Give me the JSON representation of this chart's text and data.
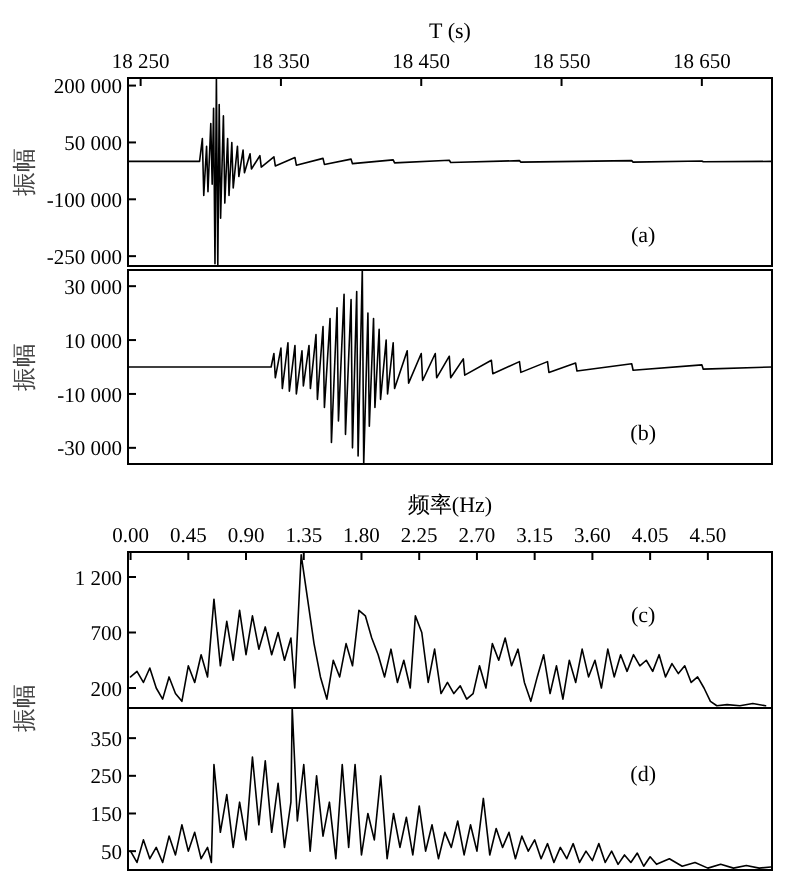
{
  "chart_data": [
    {
      "type": "line",
      "xlabel": "T (s)",
      "ylabel": "振幅",
      "annotations": [
        "(a)"
      ],
      "xlim": [
        18241,
        18700
      ],
      "ylim": [
        -276000,
        220000
      ],
      "xticks": [
        {
          "value": 18250,
          "label": "18 250"
        },
        {
          "value": 18350,
          "label": "18 350"
        },
        {
          "value": 18450,
          "label": "18 450"
        },
        {
          "value": 18550,
          "label": "18 550"
        },
        {
          "value": 18650,
          "label": "18 650"
        }
      ],
      "yticks": [
        {
          "value": 200000,
          "label": "200 000"
        },
        {
          "value": 50000,
          "label": "50 000"
        },
        {
          "value": -100000,
          "label": "-100 000"
        },
        {
          "value": -250000,
          "label": "-250 000"
        }
      ],
      "series": [
        {
          "color": "#000000",
          "x": [
            18241,
            18292,
            18294,
            18295,
            18297,
            18298,
            18300,
            18301,
            18302,
            18303,
            18304,
            18305,
            18306,
            18307,
            18309,
            18310,
            18312,
            18313,
            18315,
            18316,
            18319,
            18320,
            18323,
            18324,
            18328,
            18329,
            18335,
            18336,
            18345,
            18346,
            18360,
            18361,
            18380,
            18381,
            18400,
            18401,
            18430,
            18431,
            18470,
            18471,
            18520,
            18521,
            18600,
            18601,
            18650,
            18651,
            18700
          ],
          "values": [
            0,
            0,
            60000,
            -90000,
            40000,
            -80000,
            100000,
            -60000,
            140000,
            -270000,
            219000,
            -276000,
            150000,
            -150000,
            120000,
            -110000,
            60000,
            -90000,
            50000,
            -70000,
            40000,
            -40000,
            30000,
            -30000,
            20000,
            -20000,
            15000,
            -15000,
            12000,
            -12000,
            10000,
            -10000,
            8000,
            -8000,
            6000,
            -6000,
            4000,
            -4000,
            3000,
            -3000,
            2000,
            -2000,
            2000,
            -2000,
            1000,
            -1000,
            0
          ]
        }
      ]
    },
    {
      "type": "line",
      "ylabel": "振幅",
      "annotations": [
        "(b)"
      ],
      "xlim": [
        18241,
        18700
      ],
      "ylim": [
        -36000,
        36000
      ],
      "tick_labels": "y",
      "yticks": [
        {
          "value": 30000,
          "label": "30 000"
        },
        {
          "value": 10000,
          "label": "10 000"
        },
        {
          "value": -10000,
          "label": "-10 000"
        },
        {
          "value": -30000,
          "label": "-30 000"
        }
      ],
      "series": [
        {
          "color": "#000000",
          "x": [
            18241,
            18343,
            18345,
            18346,
            18350,
            18351,
            18355,
            18356,
            18360,
            18361,
            18365,
            18366,
            18370,
            18371,
            18375,
            18376,
            18380,
            18381,
            18385,
            18386,
            18390,
            18391,
            18395,
            18396,
            18400,
            18401,
            18404,
            18405,
            18408,
            18409,
            18412,
            18413,
            18416,
            18417,
            18420,
            18421,
            18425,
            18426,
            18430,
            18431,
            18440,
            18441,
            18450,
            18451,
            18460,
            18461,
            18470,
            18471,
            18480,
            18481,
            18500,
            18501,
            18520,
            18521,
            18540,
            18541,
            18560,
            18561,
            18600,
            18601,
            18650,
            18651,
            18700
          ],
          "values": [
            0,
            0,
            5000,
            -4000,
            7000,
            -8000,
            9000,
            -9000,
            8000,
            -10000,
            6000,
            -7000,
            8000,
            -8000,
            12000,
            -12000,
            15000,
            -15000,
            18000,
            -28000,
            22000,
            -20000,
            27000,
            -25000,
            25000,
            -30000,
            28000,
            -33000,
            36000,
            -36000,
            20000,
            -22000,
            18000,
            -15000,
            14000,
            -12000,
            10000,
            -10000,
            9000,
            -8000,
            6000,
            -6000,
            5000,
            -5000,
            5000,
            -4000,
            4000,
            -4000,
            3000,
            -3000,
            2500,
            -2500,
            2000,
            -2000,
            2000,
            -2000,
            1500,
            -1500,
            1200,
            -1200,
            800,
            -800,
            0
          ]
        }
      ]
    },
    {
      "type": "line",
      "xlabel": "频率(Hz)",
      "ylabel": "振幅",
      "annotations": [
        "(c)"
      ],
      "xlim": [
        -0.02,
        5.0
      ],
      "ylim": [
        20,
        1425
      ],
      "xticks": [
        {
          "value": 0,
          "label": "0.00"
        },
        {
          "value": 0.45,
          "label": "0.45"
        },
        {
          "value": 0.9,
          "label": "0.90"
        },
        {
          "value": 1.35,
          "label": "1.35"
        },
        {
          "value": 1.8,
          "label": "1.80"
        },
        {
          "value": 2.25,
          "label": "2.25"
        },
        {
          "value": 2.7,
          "label": "2.70"
        },
        {
          "value": 3.15,
          "label": "3.15"
        },
        {
          "value": 3.6,
          "label": "3.60"
        },
        {
          "value": 4.05,
          "label": "4.05"
        },
        {
          "value": 4.5,
          "label": "4.50"
        }
      ],
      "yticks": [
        {
          "value": 1200,
          "label": "1 200"
        },
        700,
        200
      ],
      "series": [
        {
          "color": "#000000",
          "x": [
            0.0,
            0.05,
            0.1,
            0.15,
            0.2,
            0.25,
            0.3,
            0.35,
            0.4,
            0.45,
            0.5,
            0.55,
            0.6,
            0.65,
            0.7,
            0.75,
            0.8,
            0.85,
            0.9,
            0.95,
            1.0,
            1.05,
            1.1,
            1.15,
            1.2,
            1.25,
            1.28,
            1.33,
            1.38,
            1.43,
            1.48,
            1.53,
            1.58,
            1.63,
            1.68,
            1.73,
            1.78,
            1.83,
            1.88,
            1.93,
            1.98,
            2.03,
            2.08,
            2.13,
            2.18,
            2.22,
            2.27,
            2.32,
            2.37,
            2.42,
            2.47,
            2.52,
            2.57,
            2.62,
            2.67,
            2.72,
            2.77,
            2.82,
            2.87,
            2.92,
            2.97,
            3.02,
            3.07,
            3.12,
            3.17,
            3.22,
            3.27,
            3.32,
            3.37,
            3.42,
            3.47,
            3.52,
            3.57,
            3.62,
            3.67,
            3.72,
            3.77,
            3.82,
            3.87,
            3.92,
            3.97,
            4.02,
            4.07,
            4.12,
            4.17,
            4.22,
            4.27,
            4.32,
            4.37,
            4.42,
            4.47,
            4.52,
            4.57,
            4.65,
            4.75,
            4.85,
            4.95
          ],
          "values": [
            300,
            350,
            250,
            380,
            200,
            100,
            300,
            150,
            80,
            400,
            250,
            500,
            300,
            1000,
            400,
            800,
            450,
            900,
            500,
            850,
            550,
            750,
            500,
            700,
            450,
            650,
            200,
            1400,
            1000,
            600,
            300,
            100,
            450,
            300,
            600,
            400,
            900,
            850,
            650,
            500,
            300,
            550,
            250,
            450,
            200,
            850,
            700,
            250,
            550,
            150,
            250,
            150,
            220,
            100,
            150,
            400,
            200,
            600,
            450,
            650,
            400,
            550,
            250,
            80,
            300,
            500,
            150,
            400,
            100,
            450,
            250,
            550,
            300,
            450,
            200,
            550,
            300,
            500,
            350,
            500,
            400,
            450,
            350,
            500,
            300,
            420,
            330,
            400,
            250,
            300,
            200,
            80,
            40,
            50,
            40,
            60,
            40
          ]
        }
      ]
    },
    {
      "type": "line",
      "annotations": [
        "(d)"
      ],
      "xlim": [
        -0.02,
        5.0
      ],
      "ylim": [
        0,
        430
      ],
      "tick_labels": "y",
      "yticks": [
        350,
        250,
        150,
        50
      ],
      "series": [
        {
          "color": "#000000",
          "x": [
            0.0,
            0.05,
            0.1,
            0.15,
            0.2,
            0.25,
            0.3,
            0.35,
            0.4,
            0.45,
            0.5,
            0.55,
            0.6,
            0.63,
            0.65,
            0.7,
            0.75,
            0.8,
            0.85,
            0.9,
            0.95,
            1.0,
            1.05,
            1.1,
            1.15,
            1.2,
            1.25,
            1.26,
            1.3,
            1.35,
            1.4,
            1.45,
            1.5,
            1.55,
            1.6,
            1.65,
            1.7,
            1.75,
            1.8,
            1.85,
            1.9,
            1.95,
            2.0,
            2.05,
            2.1,
            2.15,
            2.2,
            2.25,
            2.3,
            2.35,
            2.4,
            2.45,
            2.5,
            2.55,
            2.6,
            2.65,
            2.7,
            2.75,
            2.8,
            2.85,
            2.9,
            2.95,
            3.0,
            3.05,
            3.1,
            3.15,
            3.2,
            3.25,
            3.3,
            3.35,
            3.4,
            3.45,
            3.5,
            3.55,
            3.6,
            3.65,
            3.7,
            3.75,
            3.8,
            3.85,
            3.9,
            3.95,
            4.0,
            4.05,
            4.1,
            4.2,
            4.3,
            4.4,
            4.5,
            4.6,
            4.7,
            4.8,
            4.9,
            4.99
          ],
          "values": [
            50,
            20,
            80,
            30,
            60,
            20,
            90,
            40,
            120,
            50,
            100,
            30,
            60,
            20,
            280,
            100,
            200,
            60,
            180,
            80,
            300,
            120,
            290,
            100,
            230,
            60,
            180,
            430,
            130,
            280,
            50,
            250,
            90,
            180,
            30,
            280,
            60,
            280,
            40,
            150,
            80,
            250,
            30,
            150,
            60,
            140,
            40,
            170,
            50,
            120,
            30,
            100,
            60,
            130,
            40,
            120,
            50,
            190,
            40,
            110,
            60,
            100,
            30,
            90,
            50,
            80,
            30,
            70,
            20,
            60,
            30,
            70,
            20,
            50,
            25,
            70,
            20,
            50,
            15,
            40,
            20,
            45,
            10,
            35,
            15,
            30,
            10,
            20,
            5,
            15,
            5,
            12,
            5,
            8
          ]
        }
      ]
    }
  ]
}
